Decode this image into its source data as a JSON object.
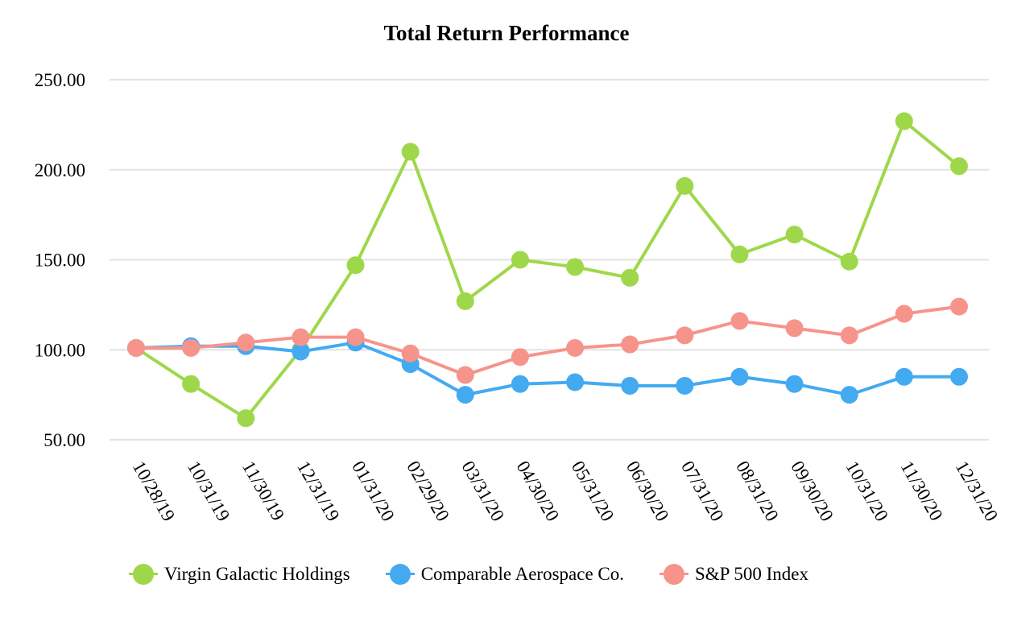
{
  "chart_data": {
    "type": "line",
    "title": "Total Return Performance",
    "xlabel": "",
    "ylabel": "",
    "ylim": [
      50,
      250
    ],
    "yticks": [
      "50.00",
      "100.00",
      "150.00",
      "200.00",
      "250.00"
    ],
    "ytick_values": [
      50,
      100,
      150,
      200,
      250
    ],
    "grid": true,
    "legend_position": "bottom",
    "categories": [
      "10/28/19",
      "10/31/19",
      "11/30/19",
      "12/31/19",
      "01/31/20",
      "02/29/20",
      "03/31/20",
      "04/30/20",
      "05/31/20",
      "06/30/20",
      "07/31/20",
      "08/31/20",
      "09/30/20",
      "10/31/20",
      "11/30/20",
      "12/31/20"
    ],
    "series": [
      {
        "name": "Virgin Galactic Holdings",
        "color": "#9ed84a",
        "values": [
          101,
          81,
          62,
          100,
          147,
          210,
          127,
          150,
          146,
          140,
          191,
          153,
          164,
          149,
          227,
          202
        ]
      },
      {
        "name": "Comparable Aerospace Co.",
        "color": "#43aaf2",
        "values": [
          101,
          102,
          102,
          99,
          104,
          92,
          75,
          81,
          82,
          80,
          80,
          85,
          81,
          75,
          85,
          85
        ]
      },
      {
        "name": "S&P 500 Index",
        "color": "#f6948c",
        "values": [
          101,
          101,
          104,
          107,
          107,
          98,
          86,
          96,
          101,
          103,
          108,
          116,
          112,
          108,
          120,
          124
        ]
      }
    ]
  }
}
